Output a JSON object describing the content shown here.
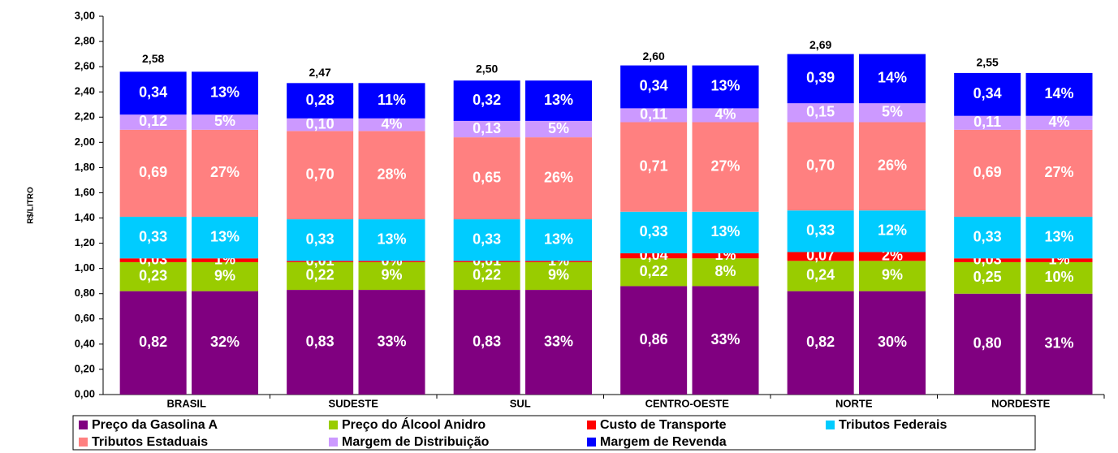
{
  "chart_data": {
    "type": "bar",
    "y_label": "R$/LITRO",
    "categories": [
      "BRASIL",
      "SUDESTE",
      "SUL",
      "CENTRO-OESTE",
      "NORTE",
      "NORDESTE"
    ],
    "totals": [
      2.58,
      2.47,
      2.5,
      2.6,
      2.69,
      2.55
    ],
    "total_labels": [
      "2,58",
      "2,47",
      "2,50",
      "2,60",
      "2,69",
      "2,55"
    ],
    "series": [
      {
        "name": "Preço da Gasolina A",
        "color": "#800080",
        "values": [
          0.82,
          0.83,
          0.83,
          0.86,
          0.82,
          0.8
        ],
        "value_labels": [
          "0,82",
          "0,83",
          "0,83",
          "0,86",
          "0,82",
          "0,80"
        ],
        "shares": [
          32,
          33,
          33,
          33,
          30,
          31
        ],
        "share_labels": [
          "32%",
          "33%",
          "33%",
          "33%",
          "30%",
          "31%"
        ]
      },
      {
        "name": "Preço do Álcool Anidro",
        "color": "#99cc00",
        "values": [
          0.23,
          0.22,
          0.22,
          0.22,
          0.24,
          0.25
        ],
        "value_labels": [
          "0,23",
          "0,22",
          "0,22",
          "0,22",
          "0,24",
          "0,25"
        ],
        "shares": [
          9,
          9,
          9,
          8,
          9,
          10
        ],
        "share_labels": [
          "9%",
          "9%",
          "9%",
          "8%",
          "9%",
          "10%"
        ]
      },
      {
        "name": "Custo de Transporte",
        "color": "#ff0000",
        "values": [
          0.03,
          0.01,
          0.01,
          0.04,
          0.07,
          0.03
        ],
        "value_labels": [
          "0,03",
          "0,01",
          "0,01",
          "0,04",
          "0,07",
          "0,03"
        ],
        "shares": [
          1,
          0,
          1,
          1,
          2,
          1
        ],
        "share_labels": [
          "1%",
          "0%",
          "1%",
          "1%",
          "2%",
          "1%"
        ]
      },
      {
        "name": "Tributos Federais",
        "color": "#00ccff",
        "values": [
          0.33,
          0.33,
          0.33,
          0.33,
          0.33,
          0.33
        ],
        "value_labels": [
          "0,33",
          "0,33",
          "0,33",
          "0,33",
          "0,33",
          "0,33"
        ],
        "shares": [
          13,
          13,
          13,
          13,
          12,
          13
        ],
        "share_labels": [
          "13%",
          "13%",
          "13%",
          "13%",
          "12%",
          "13%"
        ]
      },
      {
        "name": "Tributos Estaduais",
        "color": "#ff8080",
        "values": [
          0.69,
          0.7,
          0.65,
          0.71,
          0.7,
          0.69
        ],
        "value_labels": [
          "0,69",
          "0,70",
          "0,65",
          "0,71",
          "0,70",
          "0,69"
        ],
        "shares": [
          27,
          28,
          26,
          27,
          26,
          27
        ],
        "share_labels": [
          "27%",
          "28%",
          "26%",
          "27%",
          "26%",
          "27%"
        ]
      },
      {
        "name": "Margem de Distribuição",
        "color": "#cc99ff",
        "values": [
          0.12,
          0.1,
          0.13,
          0.11,
          0.15,
          0.11
        ],
        "value_labels": [
          "0,12",
          "0,10",
          "0,13",
          "0,11",
          "0,15",
          "0,11"
        ],
        "shares": [
          5,
          4,
          5,
          4,
          5,
          4
        ],
        "share_labels": [
          "5%",
          "4%",
          "5%",
          "4%",
          "5%",
          "4%"
        ]
      },
      {
        "name": "Margem de Revenda",
        "color": "#0000ff",
        "values": [
          0.34,
          0.28,
          0.32,
          0.34,
          0.39,
          0.34
        ],
        "value_labels": [
          "0,34",
          "0,28",
          "0,32",
          "0,34",
          "0,39",
          "0,34"
        ],
        "shares": [
          13,
          11,
          13,
          13,
          14,
          14
        ],
        "share_labels": [
          "13%",
          "11%",
          "13%",
          "13%",
          "14%",
          "14%"
        ]
      }
    ],
    "ylim": [
      0,
      3
    ],
    "yticks": [
      {
        "value": 0,
        "label": "0,00"
      },
      {
        "value": 0.2,
        "label": "0,20"
      },
      {
        "value": 0.4,
        "label": "0,40"
      },
      {
        "value": 0.6,
        "label": "0,60"
      },
      {
        "value": 0.8,
        "label": "0,80"
      },
      {
        "value": 1,
        "label": "1,00"
      },
      {
        "value": 1.2,
        "label": "1,20"
      },
      {
        "value": 1.4,
        "label": "1,40"
      },
      {
        "value": 1.6,
        "label": "1,60"
      },
      {
        "value": 1.8,
        "label": "1,80"
      },
      {
        "value": 2,
        "label": "2,00"
      },
      {
        "value": 2.2,
        "label": "2,20"
      },
      {
        "value": 2.4,
        "label": "2,40"
      },
      {
        "value": 2.6,
        "label": "2,60"
      },
      {
        "value": 2.8,
        "label": "2,80"
      },
      {
        "value": 3,
        "label": "3,00"
      }
    ],
    "legend": "bottom"
  }
}
